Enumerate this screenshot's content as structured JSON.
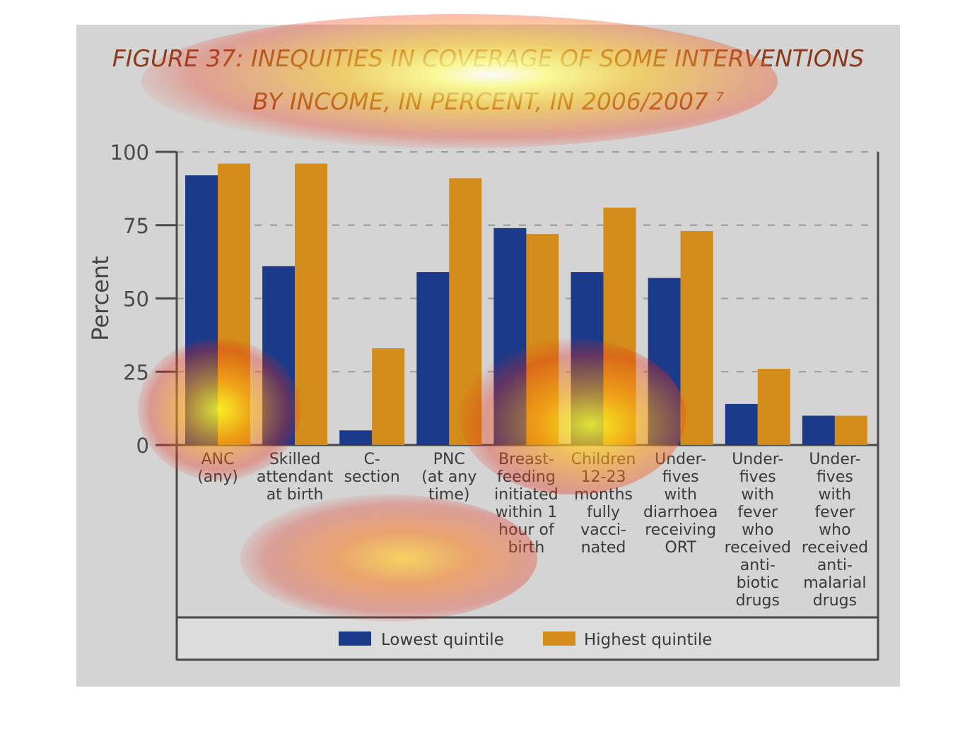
{
  "chart_data": {
    "type": "bar",
    "title": "FIGURE 37: INEQUITIES IN COVERAGE OF SOME INTERVENTIONS BY INCOME, IN PERCENT, IN 2006/2007",
    "title_lines": [
      "FIGURE 37: INEQUITIES IN COVERAGE OF SOME INTERVENTIONS",
      "BY INCOME, IN PERCENT, IN 2006/2007"
    ],
    "title_superscript": "7",
    "ylabel": "Percent",
    "xlabel": "",
    "ylim": [
      0,
      100
    ],
    "yticks": [
      "0",
      "25",
      "50",
      "75",
      "100"
    ],
    "grid": true,
    "legend_position": "bottom",
    "categories": [
      [
        "ANC",
        "(any)"
      ],
      [
        "Skilled",
        "attendant",
        "at birth"
      ],
      [
        "C-",
        "section"
      ],
      [
        "PNC",
        "(at any",
        "time)"
      ],
      [
        "Breast-",
        "feeding",
        "initiated",
        "within 1",
        "hour of",
        "birth"
      ],
      [
        "Children",
        "12-23",
        "months",
        "fully",
        "vacci-",
        "nated"
      ],
      [
        "Under-",
        "fives",
        "with",
        "diarrhoea",
        "receiving",
        "ORT"
      ],
      [
        "Under-",
        "fives",
        "with",
        "fever",
        "who",
        "received",
        "anti-",
        "biotic",
        "drugs"
      ],
      [
        "Under-",
        "fives",
        "with",
        "fever",
        "who",
        "received",
        "anti-",
        "malarial",
        "drugs"
      ]
    ],
    "series": [
      {
        "name": "Lowest quintile",
        "color": "#1c3a8a",
        "values": [
          92,
          61,
          5,
          59,
          74,
          59,
          57,
          14,
          10
        ]
      },
      {
        "name": "Highest quintile",
        "color": "#d38c1a",
        "values": [
          96,
          96,
          33,
          91,
          72,
          81,
          73,
          26,
          10
        ]
      }
    ]
  }
}
